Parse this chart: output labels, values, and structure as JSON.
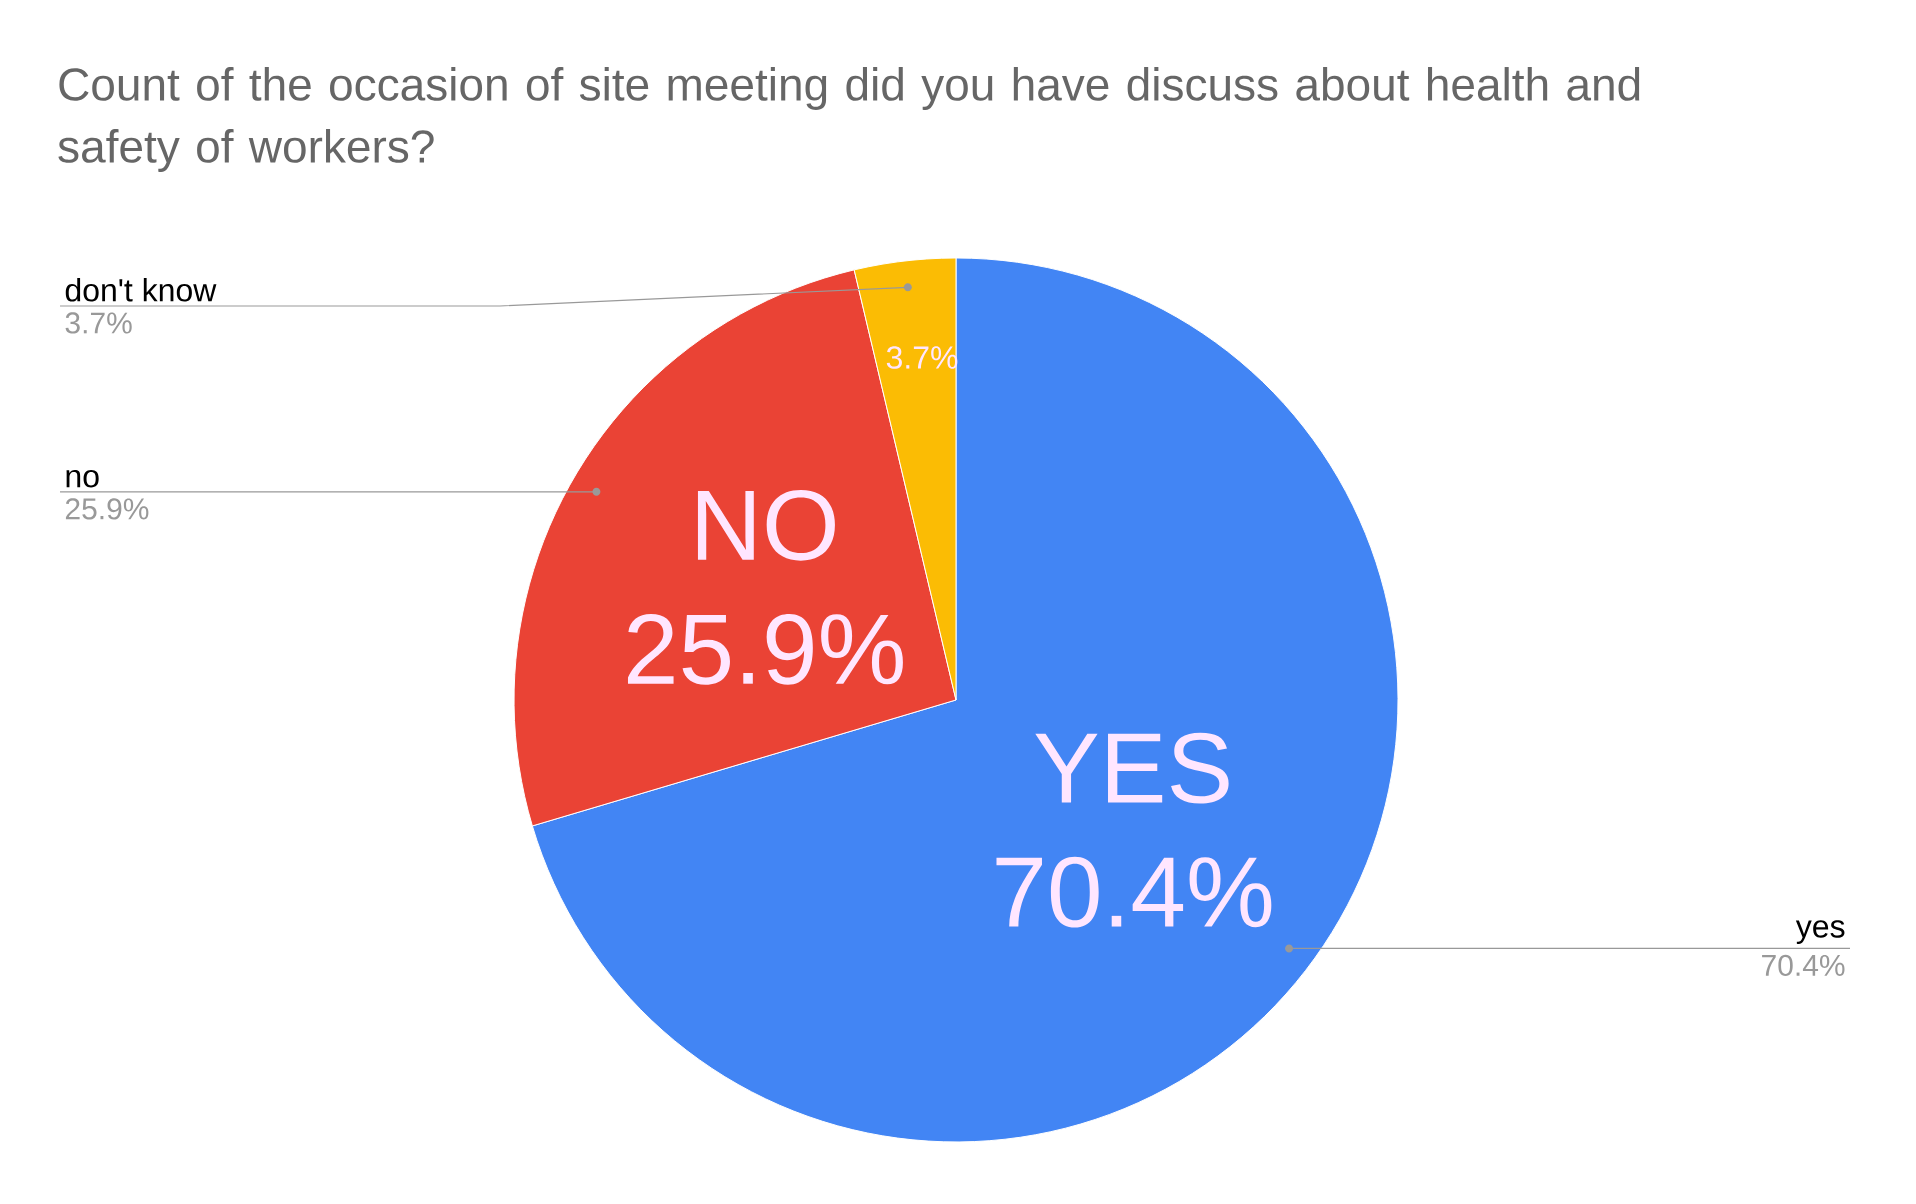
{
  "chart_data": {
    "type": "pie",
    "title": "Count of the occasion of site meeting did you have discuss about health and safety of workers?",
    "categories": [
      "yes",
      "no",
      "don't know"
    ],
    "values": [
      70.4,
      25.9,
      3.7
    ],
    "colors": [
      "#4285f4",
      "#ea4335",
      "#fbbc04"
    ],
    "value_labels": [
      "70.4%",
      "25.9%",
      "3.7%"
    ],
    "annotations": [
      "YES",
      "NO"
    ]
  }
}
